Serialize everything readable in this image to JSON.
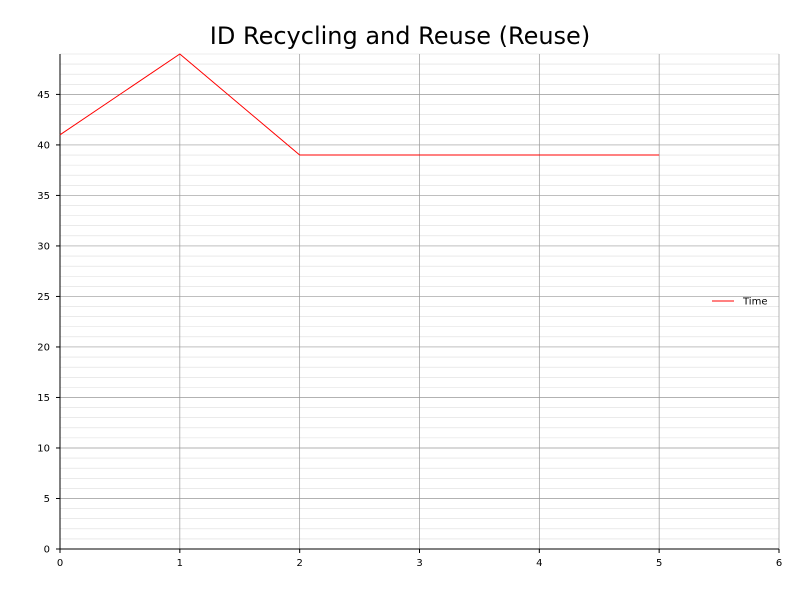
{
  "chart_data": {
    "type": "line",
    "title": "ID Recycling and Reuse (Reuse)",
    "xlabel": "",
    "ylabel": "",
    "xlim": [
      0,
      6
    ],
    "ylim": [
      0,
      49
    ],
    "x_ticks": [
      0,
      1,
      2,
      3,
      4,
      5,
      6
    ],
    "y_ticks": [
      0,
      5,
      10,
      15,
      20,
      25,
      30,
      35,
      40,
      45
    ],
    "grid": true,
    "minor_grid": true,
    "legend_position": "right",
    "series": [
      {
        "name": "Time",
        "color": "#ff0000",
        "x": [
          0,
          1,
          2,
          3,
          4,
          5
        ],
        "y": [
          41,
          49,
          39,
          39,
          39,
          39
        ]
      }
    ]
  }
}
